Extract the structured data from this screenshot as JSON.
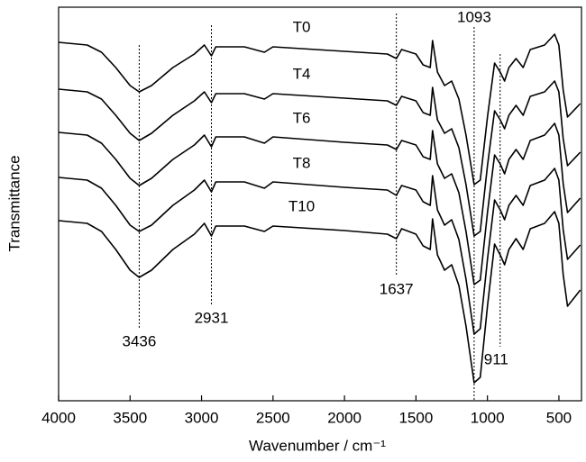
{
  "chart_data": {
    "type": "line",
    "xlabel": "Wavenumber / cm⁻¹",
    "ylabel": "Transmittance",
    "xlim": [
      4000,
      342
    ],
    "xticks": [
      4000,
      3500,
      3000,
      2500,
      2000,
      1500,
      1000,
      500
    ],
    "ylim": [
      0,
      437
    ],
    "x": [
      4000,
      3800,
      3700,
      3600,
      3500,
      3436,
      3350,
      3200,
      3050,
      2980,
      2931,
      2900,
      2700,
      2560,
      2500,
      2000,
      1700,
      1637,
      1600,
      1500,
      1450,
      1400,
      1384,
      1350,
      1300,
      1250,
      1200,
      1150,
      1093,
      1050,
      1000,
      950,
      911,
      880,
      850,
      800,
      750,
      700,
      600,
      530,
      500,
      470,
      440,
      350
    ],
    "series": [
      {
        "name": "T0",
        "color": "#000000",
        "values": [
          398,
          395,
          387,
          370,
          350,
          343,
          350,
          370,
          385,
          395,
          383,
          393,
          393,
          387,
          393,
          388,
          385,
          380,
          390,
          385,
          373,
          370,
          400,
          365,
          350,
          355,
          335,
          295,
          240,
          245,
          315,
          375,
          365,
          355,
          370,
          380,
          370,
          390,
          395,
          407,
          395,
          345,
          315,
          330
        ]
      },
      {
        "name": "T4",
        "color": "#000000",
        "values": [
          346,
          343,
          335,
          317,
          297,
          289,
          297,
          317,
          333,
          343,
          331,
          341,
          341,
          335,
          341,
          336,
          333,
          328,
          338,
          333,
          320,
          317,
          348,
          312,
          297,
          302,
          281,
          240,
          183,
          188,
          261,
          322,
          312,
          302,
          317,
          328,
          317,
          338,
          343,
          355,
          343,
          291,
          261,
          276
        ]
      },
      {
        "name": "T6",
        "color": "#000000",
        "values": [
          298,
          295,
          286,
          268,
          247,
          239,
          247,
          268,
          284,
          295,
          282,
          293,
          293,
          286,
          293,
          287,
          284,
          279,
          289,
          284,
          271,
          268,
          300,
          263,
          247,
          252,
          231,
          188,
          129,
          134,
          209,
          273,
          263,
          252,
          268,
          279,
          268,
          289,
          295,
          308,
          295,
          241,
          209,
          225
        ]
      },
      {
        "name": "T8",
        "color": "#000000",
        "values": [
          248,
          245,
          236,
          217,
          195,
          188,
          195,
          217,
          234,
          245,
          232,
          243,
          243,
          236,
          243,
          237,
          234,
          228,
          239,
          234,
          221,
          217,
          250,
          212,
          195,
          201,
          179,
          135,
          74,
          80,
          157,
          223,
          212,
          201,
          217,
          228,
          217,
          239,
          245,
          258,
          245,
          190,
          157,
          173
        ]
      },
      {
        "name": "T10",
        "color": "#000000",
        "values": [
          200,
          197,
          188,
          168,
          145,
          137,
          145,
          168,
          185,
          197,
          183,
          194,
          194,
          188,
          194,
          189,
          185,
          180,
          191,
          185,
          172,
          168,
          202,
          162,
          145,
          151,
          128,
          83,
          20,
          26,
          105,
          174,
          162,
          151,
          168,
          180,
          168,
          191,
          197,
          210,
          197,
          140,
          105,
          123
        ]
      }
    ],
    "peaks": [
      3436,
      2931,
      1637,
      1093,
      911
    ]
  }
}
